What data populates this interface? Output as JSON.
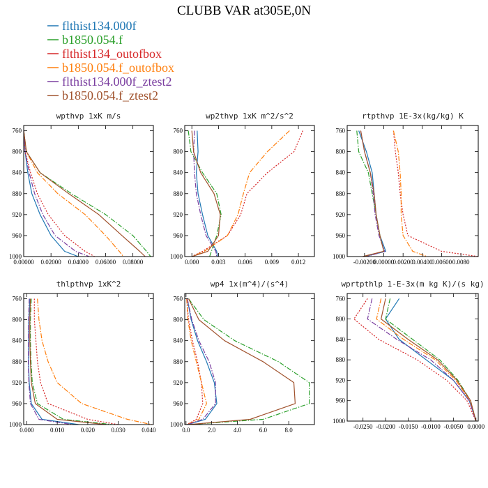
{
  "figure_title": "CLUBB VAR at305E,0N",
  "legend": [
    {
      "name": "flthist134.000f",
      "color": "#1f77b4",
      "dash": "solid"
    },
    {
      "name": "b1850.054.f",
      "color": "#2ca02c",
      "dash": "dashdot"
    },
    {
      "name": "flthist134_outofbox",
      "color": "#d62728",
      "dash": "dotted"
    },
    {
      "name": "b1850.054.f_outofbox",
      "color": "#ff7f0e",
      "dash": "dashdot"
    },
    {
      "name": "flthist134.000f_ztest2",
      "color": "#7b3fa0",
      "dash": "dashdot"
    },
    {
      "name": "b1850.054.f_ztest2",
      "color": "#a0522d",
      "dash": "solid"
    }
  ],
  "chart_data": [
    {
      "type": "line",
      "title": "wpthvp  1xK m/s",
      "xlim": [
        0,
        0.095
      ],
      "ylim": [
        1000,
        750
      ],
      "x_ticks": [
        "0.00000",
        "0.02000",
        "0.04000",
        "0.06000",
        "0.08000"
      ],
      "x_tick_values": [
        0,
        0.02,
        0.04,
        0.06,
        0.08
      ],
      "y_ticks": [
        "760",
        "800",
        "840",
        "880",
        "920",
        "960",
        "1000"
      ],
      "y_tick_values": [
        760,
        800,
        840,
        880,
        920,
        960,
        1000
      ],
      "series": [
        {
          "x": [
            0.0,
            0.001,
            0.003,
            0.006,
            0.012,
            0.02,
            0.03,
            0.04
          ],
          "y": [
            760,
            800,
            840,
            880,
            920,
            960,
            990,
            1000
          ]
        },
        {
          "x": [
            0.0,
            0.002,
            0.012,
            0.035,
            0.06,
            0.08,
            0.09,
            0.093
          ],
          "y": [
            760,
            800,
            840,
            880,
            920,
            960,
            990,
            1000
          ]
        },
        {
          "x": [
            0.0,
            0.001,
            0.005,
            0.01,
            0.018,
            0.03,
            0.045,
            0.052
          ],
          "y": [
            760,
            800,
            840,
            880,
            920,
            960,
            990,
            1000
          ]
        },
        {
          "x": [
            0.0,
            0.002,
            0.01,
            0.025,
            0.045,
            0.06,
            0.07,
            0.073
          ],
          "y": [
            760,
            800,
            840,
            880,
            920,
            960,
            990,
            1000
          ]
        },
        {
          "x": [
            0.0,
            0.001,
            0.004,
            0.008,
            0.014,
            0.023,
            0.038,
            0.048
          ],
          "y": [
            760,
            800,
            840,
            880,
            920,
            960,
            990,
            1000
          ]
        },
        {
          "x": [
            0.0,
            0.002,
            0.012,
            0.033,
            0.055,
            0.072,
            0.085,
            0.089
          ],
          "y": [
            760,
            800,
            840,
            880,
            920,
            960,
            990,
            1000
          ]
        }
      ]
    },
    {
      "type": "line",
      "title": "wp2thvp  1xK m^2/s^2",
      "xlim": [
        -0.0008,
        0.0138
      ],
      "ylim": [
        1000,
        750
      ],
      "x_ticks": [
        "0.000",
        "0.003",
        "0.006",
        "0.009",
        "0.012"
      ],
      "x_tick_values": [
        0,
        0.003,
        0.006,
        0.009,
        0.012
      ],
      "y_ticks": [
        "760",
        "800",
        "840",
        "880",
        "920",
        "960",
        "1000"
      ],
      "y_tick_values": [
        760,
        800,
        840,
        880,
        920,
        960,
        1000
      ],
      "series": [
        {
          "x": [
            0.0006,
            0.0007,
            0.0005,
            0.0007,
            0.0012,
            0.0018,
            0.0028,
            0.0029
          ],
          "y": [
            760,
            800,
            840,
            880,
            920,
            960,
            990,
            1000
          ]
        },
        {
          "x": [
            -0.0004,
            -0.0001,
            0.0012,
            0.0028,
            0.0033,
            0.0028,
            0.0022,
            0.002
          ],
          "y": [
            760,
            800,
            840,
            880,
            920,
            960,
            990,
            1000
          ]
        },
        {
          "x": [
            0.0125,
            0.0115,
            0.0085,
            0.0062,
            0.0055,
            0.004,
            0.0012,
            0.0
          ],
          "y": [
            760,
            800,
            840,
            880,
            920,
            960,
            990,
            1000
          ]
        },
        {
          "x": [
            0.011,
            0.0085,
            0.0065,
            0.0058,
            0.0052,
            0.004,
            0.0014,
            0.0
          ],
          "y": [
            760,
            800,
            840,
            880,
            920,
            960,
            990,
            1000
          ]
        },
        {
          "x": [
            0.0003,
            0.0002,
            0.0003,
            0.0005,
            0.001,
            0.0016,
            0.0027,
            0.0028
          ],
          "y": [
            760,
            800,
            840,
            880,
            920,
            960,
            990,
            1000
          ]
        },
        {
          "x": [
            0.0,
            0.0002,
            0.001,
            0.0025,
            0.0032,
            0.003,
            0.0018,
            0.0
          ],
          "y": [
            760,
            800,
            840,
            880,
            920,
            960,
            990,
            1000
          ]
        }
      ]
    },
    {
      "type": "line",
      "title": "rtpthvp  1E-3x(kg/kg) K",
      "xlim": [
        -0.0038,
        0.0098
      ],
      "ylim": [
        1000,
        750
      ],
      "x_ticks": [
        "-0.00200",
        "0.00000",
        "0.00200",
        "0.00400",
        "0.00600",
        "0.0080"
      ],
      "x_tick_values": [
        -0.002,
        0,
        0.002,
        0.004,
        0.006,
        0.008
      ],
      "y_ticks": [
        "760",
        "800",
        "840",
        "880",
        "920",
        "960",
        "1000"
      ],
      "y_tick_values": [
        760,
        800,
        840,
        880,
        920,
        960,
        1000
      ],
      "series": [
        {
          "x": [
            -0.0026,
            -0.0018,
            -0.0012,
            -0.001,
            -0.0008,
            -0.0004,
            0.0002,
            -0.002
          ],
          "y": [
            760,
            800,
            840,
            880,
            920,
            960,
            990,
            1000
          ]
        },
        {
          "x": [
            -0.0028,
            -0.0026,
            -0.0016,
            -0.0012,
            -0.0008,
            -0.0004,
            0.0,
            -0.002
          ],
          "y": [
            760,
            800,
            840,
            880,
            920,
            960,
            990,
            1000
          ]
        },
        {
          "x": [
            0.001,
            0.0012,
            0.0015,
            0.0017,
            0.002,
            0.0025,
            0.006,
            0.0098
          ],
          "y": [
            760,
            800,
            840,
            880,
            920,
            960,
            990,
            1000
          ]
        },
        {
          "x": [
            0.001,
            0.0015,
            0.0017,
            0.0018,
            0.0018,
            0.002,
            0.003,
            0.0045
          ],
          "y": [
            760,
            800,
            840,
            880,
            920,
            960,
            990,
            1000
          ]
        },
        {
          "x": [
            -0.0024,
            -0.002,
            -0.0014,
            -0.0011,
            -0.0009,
            -0.0005,
            0.0001,
            -0.0018
          ],
          "y": [
            760,
            800,
            840,
            880,
            920,
            960,
            990,
            1000
          ]
        },
        {
          "x": [
            -0.0024,
            -0.002,
            -0.0014,
            -0.001,
            -0.0008,
            -0.0004,
            0.0,
            -0.0022
          ],
          "y": [
            760,
            800,
            840,
            880,
            920,
            960,
            990,
            1000
          ]
        }
      ]
    },
    {
      "type": "line",
      "title": "thlpthvp  1xK^2",
      "xlim": [
        -0.001,
        0.0415
      ],
      "ylim": [
        1000,
        750
      ],
      "x_ticks": [
        "0.000",
        "0.010",
        "0.020",
        "0.030",
        "0.040"
      ],
      "x_tick_values": [
        0,
        0.01,
        0.02,
        0.03,
        0.04
      ],
      "y_ticks": [
        "760",
        "800",
        "840",
        "880",
        "920",
        "960",
        "1000"
      ],
      "y_tick_values": [
        760,
        800,
        840,
        880,
        920,
        960,
        1000
      ],
      "series": [
        {
          "x": [
            0.001,
            0.0007,
            0.0006,
            0.0006,
            0.0008,
            0.0015,
            0.005,
            0.017
          ],
          "y": [
            760,
            800,
            840,
            880,
            920,
            960,
            990,
            1000
          ]
        },
        {
          "x": [
            0.0015,
            0.0012,
            0.0012,
            0.0014,
            0.0018,
            0.0035,
            0.012,
            0.028
          ],
          "y": [
            760,
            800,
            840,
            880,
            920,
            960,
            990,
            1000
          ]
        },
        {
          "x": [
            0.0025,
            0.0025,
            0.003,
            0.0035,
            0.0045,
            0.007,
            0.02,
            0.03
          ],
          "y": [
            760,
            800,
            840,
            880,
            920,
            960,
            990,
            1000
          ]
        },
        {
          "x": [
            0.0035,
            0.004,
            0.005,
            0.007,
            0.01,
            0.018,
            0.033,
            0.041
          ],
          "y": [
            760,
            800,
            840,
            880,
            920,
            960,
            990,
            1000
          ]
        },
        {
          "x": [
            0.0008,
            0.0006,
            0.0005,
            0.0005,
            0.0007,
            0.0012,
            0.004,
            0.015
          ],
          "y": [
            760,
            800,
            840,
            880,
            920,
            960,
            990,
            1000
          ]
        },
        {
          "x": [
            0.0012,
            0.001,
            0.001,
            0.0012,
            0.0015,
            0.0028,
            0.01,
            0.026
          ],
          "y": [
            760,
            800,
            840,
            880,
            920,
            960,
            990,
            1000
          ]
        }
      ]
    },
    {
      "type": "line",
      "title": "wp4  1x(m^4)/(s^4)",
      "xlim": [
        -0.1,
        10.0
      ],
      "ylim": [
        1000,
        750
      ],
      "x_ticks": [
        "0.0",
        "2.0",
        "4.0",
        "6.0",
        "8.0"
      ],
      "x_tick_values": [
        0,
        2,
        4,
        6,
        8
      ],
      "y_ticks": [
        "760",
        "800",
        "840",
        "880",
        "920",
        "960",
        "1000"
      ],
      "y_tick_values": [
        760,
        800,
        840,
        880,
        920,
        960,
        1000
      ],
      "series": [
        {
          "x": [
            0.1,
            0.4,
            0.9,
            1.6,
            2.2,
            2.4,
            1.5,
            0.1
          ],
          "y": [
            760,
            800,
            840,
            880,
            920,
            960,
            990,
            1000
          ]
        },
        {
          "x": [
            0.2,
            1.4,
            3.8,
            7.2,
            9.6,
            9.6,
            6.0,
            0.2
          ],
          "y": [
            760,
            800,
            840,
            880,
            920,
            960,
            990,
            1000
          ]
        },
        {
          "x": [
            0.05,
            0.2,
            0.5,
            0.9,
            1.2,
            1.3,
            0.8,
            0.05
          ],
          "y": [
            760,
            800,
            840,
            880,
            920,
            960,
            990,
            1000
          ]
        },
        {
          "x": [
            0.05,
            0.15,
            0.4,
            0.8,
            1.2,
            1.6,
            1.0,
            0.05
          ],
          "y": [
            760,
            800,
            840,
            880,
            920,
            960,
            990,
            1000
          ]
        },
        {
          "x": [
            0.1,
            0.45,
            1.0,
            1.8,
            2.3,
            2.3,
            1.3,
            0.1
          ],
          "y": [
            760,
            800,
            840,
            880,
            920,
            960,
            990,
            1000
          ]
        },
        {
          "x": [
            0.2,
            1.0,
            3.0,
            6.0,
            8.4,
            8.5,
            5.0,
            0.2
          ],
          "y": [
            760,
            800,
            840,
            880,
            920,
            960,
            990,
            1000
          ]
        }
      ]
    },
    {
      "type": "line",
      "title": "wprtpthlp  1-E-3x(m kg K)/(s kg)",
      "xlim": [
        -0.0285,
        0.0005
      ],
      "ylim": [
        1000,
        750
      ],
      "x_ticks": [
        "-0.0250",
        "-0.0200",
        "-0.0150",
        "-0.0100",
        "-0.0050",
        "0.0000"
      ],
      "x_tick_values": [
        -0.025,
        -0.02,
        -0.015,
        -0.01,
        -0.005,
        0
      ],
      "y_ticks": [
        "760",
        "800",
        "840",
        "880",
        "920",
        "960",
        "1000"
      ],
      "y_tick_values": [
        760,
        800,
        840,
        880,
        920,
        960,
        1000
      ],
      "series": [
        {
          "x": [
            -0.017,
            -0.02,
            -0.017,
            -0.011,
            -0.005,
            -0.0015,
            -0.0003,
            0.0
          ],
          "y": [
            760,
            800,
            840,
            880,
            920,
            960,
            990,
            1000
          ]
        },
        {
          "x": [
            -0.019,
            -0.02,
            -0.014,
            -0.008,
            -0.004,
            -0.0012,
            -0.0003,
            0.0
          ],
          "y": [
            760,
            800,
            840,
            880,
            920,
            960,
            990,
            1000
          ]
        },
        {
          "x": [
            -0.024,
            -0.027,
            -0.0215,
            -0.013,
            -0.0065,
            -0.002,
            -0.0005,
            0.0
          ],
          "y": [
            760,
            800,
            840,
            880,
            920,
            960,
            990,
            1000
          ]
        },
        {
          "x": [
            -0.021,
            -0.022,
            -0.016,
            -0.009,
            -0.0045,
            -0.0013,
            -0.0003,
            0.0
          ],
          "y": [
            760,
            800,
            840,
            880,
            920,
            960,
            990,
            1000
          ]
        },
        {
          "x": [
            -0.023,
            -0.024,
            -0.0175,
            -0.01,
            -0.005,
            -0.0015,
            -0.0004,
            0.0
          ],
          "y": [
            760,
            800,
            840,
            880,
            920,
            960,
            990,
            1000
          ]
        },
        {
          "x": [
            -0.02,
            -0.021,
            -0.015,
            -0.0085,
            -0.0042,
            -0.0012,
            -0.0003,
            0.0
          ],
          "y": [
            760,
            800,
            840,
            880,
            920,
            960,
            990,
            1000
          ]
        }
      ]
    }
  ]
}
